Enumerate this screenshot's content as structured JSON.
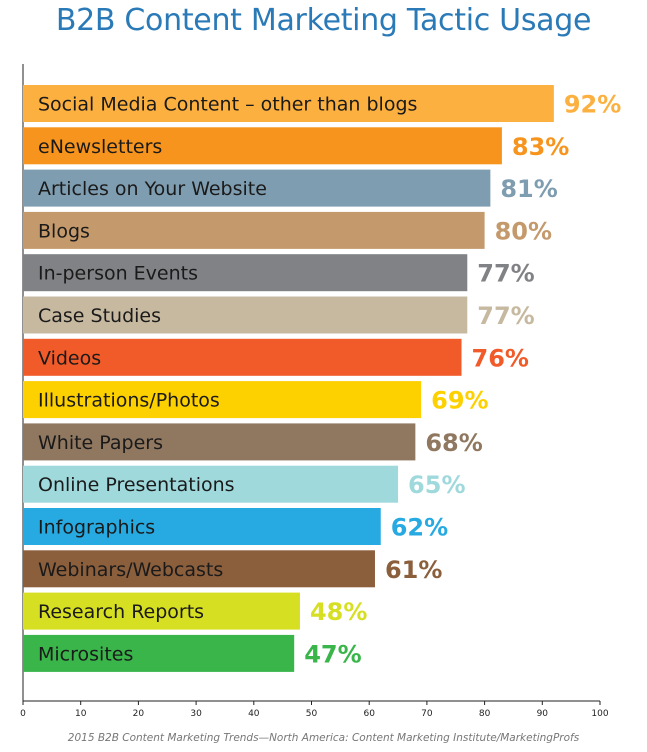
{
  "chart_data": {
    "type": "bar",
    "orientation": "horizontal",
    "title": "B2B Content Marketing Tactic Usage",
    "source": "2015 B2B Content Marketing Trends—North America: Content Marketing Institute/MarketingProfs",
    "xlim": [
      0,
      100
    ],
    "xticks": [
      0,
      10,
      20,
      30,
      40,
      50,
      60,
      70,
      80,
      90,
      100
    ],
    "grid": false,
    "value_suffix": "%",
    "categories": [
      "Social Media Content – other than blogs",
      "eNewsletters",
      "Articles on Your Website",
      "Blogs",
      "In-person Events",
      "Case Studies",
      "Videos",
      "Illustrations/Photos",
      "White Papers",
      "Online Presentations",
      "Infographics",
      "Webinars/Webcasts",
      "Research Reports",
      "Microsites"
    ],
    "values": [
      92,
      83,
      81,
      80,
      77,
      77,
      76,
      69,
      68,
      65,
      62,
      61,
      48,
      47
    ],
    "colors": [
      "#fbb040",
      "#f7941d",
      "#7f9db0",
      "#c49a6c",
      "#808285",
      "#c7b9a0",
      "#f15a29",
      "#fdd000",
      "#8f7760",
      "#9fd9dc",
      "#27aae1",
      "#8b5e3c",
      "#d7df23",
      "#39b54a"
    ],
    "label_colors": [
      "#fbb040",
      "#f7941d",
      "#7f9db0",
      "#c49a6c",
      "#808285",
      "#c7b9a0",
      "#f15a29",
      "#fdd000",
      "#8f7760",
      "#9fd9dc",
      "#27aae1",
      "#8b5e3c",
      "#d7df23",
      "#39b54a"
    ]
  }
}
